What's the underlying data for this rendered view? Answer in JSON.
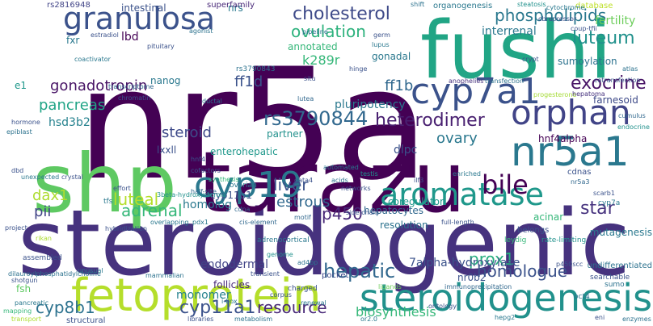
{
  "words": [
    {
      "t": "nr5a",
      "c": "#440154"
    },
    {
      "t": "steroidogenic",
      "c": "#46327e"
    },
    {
      "t": "shp",
      "c": "#5ec962"
    },
    {
      "t": "tarazu",
      "c": "#440154"
    },
    {
      "t": "fushi",
      "c": "#21a585"
    },
    {
      "t": "fetoprotein",
      "c": "#b5de2b"
    },
    {
      "t": "granulosa",
      "c": "#3b528b"
    },
    {
      "t": "steroidogenesis",
      "c": "#21918c"
    },
    {
      "t": "nr5a1",
      "c": "#2a788e"
    },
    {
      "t": "cyp7a1",
      "c": "#3b528b"
    },
    {
      "t": "cyp19",
      "c": "#2a788e"
    },
    {
      "t": "aromatase",
      "c": "#1f988b"
    },
    {
      "t": "orphan",
      "c": "#414487"
    },
    {
      "t": "bile",
      "c": "#440154"
    },
    {
      "t": "cholesterol",
      "c": "#3e4a89"
    },
    {
      "t": "phospholipids",
      "c": "#2a788e"
    },
    {
      "t": "ovulation",
      "c": "#2db27d"
    },
    {
      "t": "rs3790844",
      "c": "#31688e"
    },
    {
      "t": "heterodimer",
      "c": "#481f70"
    },
    {
      "t": "exocrine",
      "c": "#471365"
    },
    {
      "t": "luteum",
      "c": "#21918c"
    },
    {
      "t": "star",
      "c": "#46327e"
    },
    {
      "t": "liver",
      "c": "#3b528b"
    },
    {
      "t": "adrenal",
      "c": "#35b779"
    },
    {
      "t": "resource",
      "c": "#482878"
    },
    {
      "t": "homologue",
      "c": "#3b528b"
    },
    {
      "t": "hepatic",
      "c": "#31688e"
    },
    {
      "t": "prox1",
      "c": "#29af7f"
    },
    {
      "t": "cyp11a1",
      "c": "#3b528b"
    },
    {
      "t": "cyp8b1",
      "c": "#2c728e"
    },
    {
      "t": "biosynthesis",
      "c": "#35b779"
    },
    {
      "t": "7alpha-hydroxylase",
      "c": "#3b528b"
    },
    {
      "t": "estrous",
      "c": "#31688e"
    },
    {
      "t": "p450",
      "c": "#482878"
    },
    {
      "t": "luteal",
      "c": "#b5de2b"
    },
    {
      "t": "pii",
      "c": "#414487"
    },
    {
      "t": "dax1",
      "c": "#addc30"
    },
    {
      "t": "steroid",
      "c": "#3e4a89"
    },
    {
      "t": "pancreas",
      "c": "#20a486"
    },
    {
      "t": "gonadotropin",
      "c": "#471365"
    },
    {
      "t": "ovary",
      "c": "#2a788e"
    },
    {
      "t": "ff1b",
      "c": "#31688e"
    },
    {
      "t": "ff1d",
      "c": "#3b528b"
    },
    {
      "t": "k289r",
      "c": "#35b779"
    },
    {
      "t": "dlpc",
      "c": "#3b528b"
    },
    {
      "t": "hsd3b2",
      "c": "#26828e"
    },
    {
      "t": "homolog",
      "c": "#2a788e"
    },
    {
      "t": "lbd",
      "c": "#440154"
    },
    {
      "t": "nrs",
      "c": "#2a788e"
    },
    {
      "t": "annotated",
      "c": "#35b779"
    },
    {
      "t": "gonadal",
      "c": "#2a788e"
    },
    {
      "t": "interrenal",
      "c": "#2a788e"
    },
    {
      "t": "partner",
      "c": "#21918c"
    },
    {
      "t": "pluripotency",
      "c": "#2a788e"
    },
    {
      "t": "hnf4alpha",
      "c": "#440154"
    },
    {
      "t": "farnesoid",
      "c": "#3e4a89"
    },
    {
      "t": "sumoylation",
      "c": "#2c728e"
    },
    {
      "t": "fertility",
      "c": "#6ccd5a"
    },
    {
      "t": "database",
      "c": "#bddf26"
    },
    {
      "t": "organogenesis",
      "c": "#2a788e"
    },
    {
      "t": "superfamily",
      "c": "#482878"
    },
    {
      "t": "intestinal",
      "c": "#3b528b"
    },
    {
      "t": "monomer",
      "c": "#26828e"
    },
    {
      "t": "follicles",
      "c": "#482878"
    },
    {
      "t": "fsh",
      "c": "#5ec962"
    },
    {
      "t": "nr0b2",
      "c": "#3b528b"
    },
    {
      "t": "hepatocytes",
      "c": "#31688e"
    },
    {
      "t": "resolution",
      "c": "#2c728e"
    },
    {
      "t": "acinar",
      "c": "#35b779"
    },
    {
      "t": "pocket",
      "c": "#3e4a89"
    },
    {
      "t": "coregulator",
      "c": "#1f988b"
    },
    {
      "t": "cyp11b1",
      "c": "#3b528b"
    },
    {
      "t": "enterohepatic",
      "c": "#1f988b"
    },
    {
      "t": "lxxll",
      "c": "#3b528b"
    },
    {
      "t": "ovarian",
      "c": "#2a788e"
    },
    {
      "t": "adrenocortical",
      "c": "#2a788e"
    },
    {
      "t": "endodermal",
      "c": "#414487"
    },
    {
      "t": "e1",
      "c": "#1f988b"
    },
    {
      "t": "fxr",
      "c": "#2a788e"
    },
    {
      "t": "tfs",
      "c": "#2a788e"
    },
    {
      "t": "rs2816948",
      "c": "#414487"
    },
    {
      "t": "rs3790843",
      "c": "#2c728e"
    },
    {
      "t": "nanog",
      "c": "#2a788e"
    },
    {
      "t": "chromatin",
      "c": "#3b528b"
    },
    {
      "t": "anophelies",
      "c": "#46327e"
    },
    {
      "t": "transfection",
      "c": "#2c728e"
    },
    {
      "t": "progesterone",
      "c": "#a5db36"
    },
    {
      "t": "hepatoma",
      "c": "#46327e"
    },
    {
      "t": "cotransfection",
      "c": "#3b528b"
    },
    {
      "t": "cumulus",
      "c": "#31688e"
    },
    {
      "t": "endocrine",
      "c": "#21918c"
    },
    {
      "t": "cdnas",
      "c": "#3b528b"
    },
    {
      "t": "scarb1",
      "c": "#3b528b"
    },
    {
      "t": "cyp7a",
      "c": "#2a788e"
    },
    {
      "t": "nr5a3",
      "c": "#31688e"
    },
    {
      "t": "leydig",
      "c": "#35b779"
    },
    {
      "t": "belongs",
      "c": "#3b528b"
    },
    {
      "t": "rate-limiting",
      "c": "#21918c"
    },
    {
      "t": "mutagenesis",
      "c": "#2a788e"
    },
    {
      "t": "p450scc",
      "c": "#3b528b"
    },
    {
      "t": "undifferentiated",
      "c": "#2c728e"
    },
    {
      "t": "immunoprecipitation",
      "c": "#31688e"
    },
    {
      "t": "searchable",
      "c": "#3b528b"
    },
    {
      "t": "sumo",
      "c": "#2c728e"
    },
    {
      "t": "oct4",
      "c": "#2c728e"
    },
    {
      "t": "hepg2",
      "c": "#2a788e"
    },
    {
      "t": "ontology",
      "c": "#3b528b"
    },
    {
      "t": "charged",
      "c": "#3b528b"
    },
    {
      "t": "ligands",
      "c": "#6ccd5a"
    },
    {
      "t": "renewal",
      "c": "#2a788e"
    },
    {
      "t": "metabolism",
      "c": "#2c728e"
    },
    {
      "t": "libraries",
      "c": "#3b528b"
    },
    {
      "t": "i-box",
      "c": "#2a788e"
    },
    {
      "t": "structural",
      "c": "#3b528b"
    },
    {
      "t": "transport",
      "c": "#addc30"
    },
    {
      "t": "pancreatic",
      "c": "#2a788e"
    },
    {
      "t": "shotgun",
      "c": "#3b528b"
    },
    {
      "t": "dilauroylphosphatidylcholine",
      "c": "#2c728e"
    },
    {
      "t": "assembled",
      "c": "#3b528b"
    },
    {
      "t": "project",
      "c": "#3b528b"
    },
    {
      "t": "hybridization",
      "c": "#3b528b"
    },
    {
      "t": "effort",
      "c": "#3b528b"
    },
    {
      "t": "half-site",
      "c": "#31688e"
    },
    {
      "t": "3beta-hydroxysteroid",
      "c": "#21918c"
    },
    {
      "t": "synthesis",
      "c": "#35b779"
    },
    {
      "t": "cofactors",
      "c": "#3b528b"
    },
    {
      "t": "hnf4",
      "c": "#3b528b"
    },
    {
      "t": "pdx1",
      "c": "#2a788e"
    },
    {
      "t": "cis-element",
      "c": "#31688e"
    },
    {
      "t": "cdna",
      "c": "#31688e"
    },
    {
      "t": "motif",
      "c": "#31688e"
    },
    {
      "t": "side-chain",
      "c": "#3b528b"
    },
    {
      "t": "full-length",
      "c": "#3b528b"
    },
    {
      "t": "acids",
      "c": "#2c728e"
    },
    {
      "t": "networks",
      "c": "#3b528b"
    },
    {
      "t": "automated",
      "c": "#2a788e"
    },
    {
      "t": "testis",
      "c": "#21918c"
    },
    {
      "t": "gata4",
      "c": "#3b528b"
    },
    {
      "t": "ilf3",
      "c": "#3b528b"
    },
    {
      "t": "enriched",
      "c": "#2a788e"
    },
    {
      "t": "lutea",
      "c": "#31688e"
    },
    {
      "t": "situ",
      "c": "#3b528b"
    },
    {
      "t": "ductal",
      "c": "#2c728e"
    },
    {
      "t": "hinge",
      "c": "#3b528b"
    },
    {
      "t": "lupus",
      "c": "#2a788e"
    },
    {
      "t": "germ",
      "c": "#3b528b"
    },
    {
      "t": "shift",
      "c": "#2c728e"
    },
    {
      "t": "cytochrome",
      "c": "#2a788e"
    },
    {
      "t": "steatosis",
      "c": "#21918c"
    },
    {
      "t": "cbrepressor",
      "c": "#3b528b"
    },
    {
      "t": "coup-tfii",
      "c": "#3b528b"
    },
    {
      "t": "crypt",
      "c": "#3b528b"
    },
    {
      "t": "atlas",
      "c": "#2c728e"
    },
    {
      "t": "agonist",
      "c": "#2c728e"
    },
    {
      "t": "estradiol",
      "c": "#3b528b"
    },
    {
      "t": "pituitary",
      "c": "#3b528b"
    },
    {
      "t": "coactivator",
      "c": "#2a788e"
    },
    {
      "t": "transcriptome",
      "c": "#31688e"
    },
    {
      "t": "hormone",
      "c": "#3b528b"
    },
    {
      "t": "epiblast",
      "c": "#2c728e"
    },
    {
      "t": "dbd",
      "c": "#3b528b"
    },
    {
      "t": "unexpected",
      "c": "#2a788e"
    },
    {
      "t": "crystal",
      "c": "#3b528b"
    },
    {
      "t": "overlapping",
      "c": "#2a788e"
    },
    {
      "t": "genome",
      "c": "#21918c"
    },
    {
      "t": "transient",
      "c": "#3b528b"
    },
    {
      "t": "mammalian",
      "c": "#2c728e"
    },
    {
      "t": "unusual",
      "c": "#2a788e"
    },
    {
      "t": "ad4bp",
      "c": "#2c728e"
    },
    {
      "t": "corpus",
      "c": "#3b528b"
    },
    {
      "t": "or2.0",
      "c": "#2a788e"
    },
    {
      "t": "enzymes",
      "c": "#2c728e"
    },
    {
      "t": "eni",
      "c": "#3b528b"
    },
    {
      "t": "mapping",
      "c": "#35b779"
    },
    {
      "t": "rikan",
      "c": "#addc30"
    },
    {
      "t": "pipeline",
      "c": "#2c728e"
    },
    {
      "t": "docytes",
      "c": "#3b528b"
    },
    {
      "t": "ptf1a",
      "c": "#a5db36"
    },
    {
      "t": "pl5",
      "c": "#3b528b"
    },
    {
      "t": "emt",
      "c": "#2a788e"
    }
  ]
}
